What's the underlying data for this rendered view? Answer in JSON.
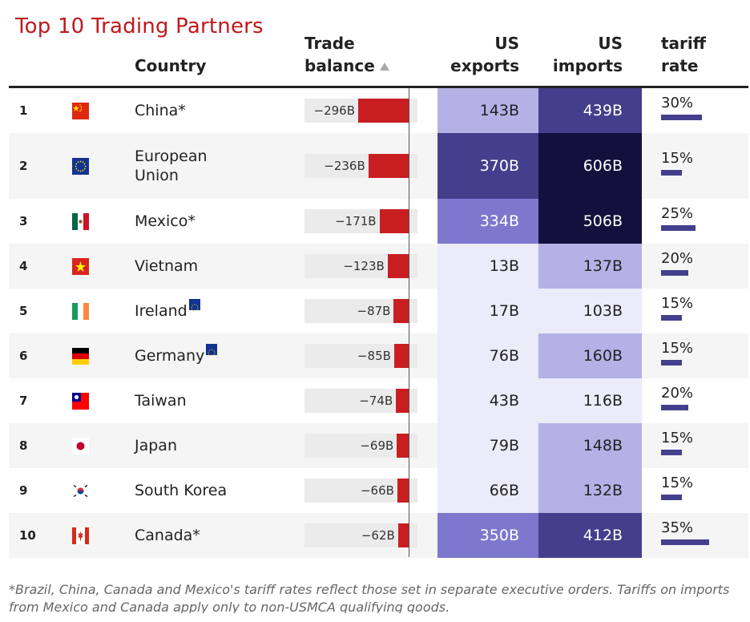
{
  "title": "Top 10 Trading Partners",
  "headers": {
    "country": "Country",
    "trade_balance_1": "Trade",
    "trade_balance_2": "balance",
    "exports_1": "US",
    "exports_2": "exports",
    "imports_1": "US",
    "imports_2": "imports",
    "tariff_1": "tariff",
    "tariff_2": "rate"
  },
  "colors": {
    "title": "#c0181e",
    "balance_bar": "#c81e22",
    "tariff_bar": "#443f8c",
    "heat_scale": [
      "#ecebfa",
      "#b4b1e6",
      "#7d78ce",
      "#443f8c",
      "#12113e"
    ]
  },
  "footnote": "*Brazil, China, Canada and Mexico's tariff rates reflect those set in separate executive orders. Tariffs on imports from Mexico and Canada apply only to non-USMCA qualifying goods.",
  "chart_data": {
    "type": "table",
    "columns": [
      "rank",
      "flag",
      "Country",
      "Trade balance",
      "US exports",
      "US imports",
      "tariff rate"
    ],
    "sort": "Trade balance ascending",
    "rows": [
      {
        "rank": "1",
        "flag": "china-flag-icon",
        "country": "China*",
        "balance": -296,
        "balance_label": "−296B",
        "exports": 143,
        "exports_label": "143B",
        "imports": 439,
        "imports_label": "439B",
        "tariff": 30,
        "tariff_label": "30%"
      },
      {
        "rank": "2",
        "flag": "eu-flag-icon",
        "country": "European Union",
        "balance": -236,
        "balance_label": "−236B",
        "exports": 370,
        "exports_label": "370B",
        "imports": 606,
        "imports_label": "606B",
        "tariff": 15,
        "tariff_label": "15%"
      },
      {
        "rank": "3",
        "flag": "mexico-flag-icon",
        "country": "Mexico*",
        "balance": -171,
        "balance_label": "−171B",
        "exports": 334,
        "exports_label": "334B",
        "imports": 506,
        "imports_label": "506B",
        "tariff": 25,
        "tariff_label": "25%"
      },
      {
        "rank": "4",
        "flag": "vietnam-flag-icon",
        "country": "Vietnam",
        "balance": -123,
        "balance_label": "−123B",
        "exports": 13,
        "exports_label": "13B",
        "imports": 137,
        "imports_label": "137B",
        "tariff": 20,
        "tariff_label": "20%"
      },
      {
        "rank": "5",
        "flag": "ireland-flag-icon",
        "country": "Ireland",
        "eu_member": true,
        "balance": -87,
        "balance_label": "−87B",
        "exports": 17,
        "exports_label": "17B",
        "imports": 103,
        "imports_label": "103B",
        "tariff": 15,
        "tariff_label": "15%"
      },
      {
        "rank": "6",
        "flag": "germany-flag-icon",
        "country": "Germany",
        "eu_member": true,
        "balance": -85,
        "balance_label": "−85B",
        "exports": 76,
        "exports_label": "76B",
        "imports": 160,
        "imports_label": "160B",
        "tariff": 15,
        "tariff_label": "15%"
      },
      {
        "rank": "7",
        "flag": "taiwan-flag-icon",
        "country": "Taiwan",
        "balance": -74,
        "balance_label": "−74B",
        "exports": 43,
        "exports_label": "43B",
        "imports": 116,
        "imports_label": "116B",
        "tariff": 20,
        "tariff_label": "20%"
      },
      {
        "rank": "8",
        "flag": "japan-flag-icon",
        "country": "Japan",
        "balance": -69,
        "balance_label": "−69B",
        "exports": 79,
        "exports_label": "79B",
        "imports": 148,
        "imports_label": "148B",
        "tariff": 15,
        "tariff_label": "15%"
      },
      {
        "rank": "9",
        "flag": "south-korea-flag-icon",
        "country": "South Korea",
        "balance": -66,
        "balance_label": "−66B",
        "exports": 66,
        "exports_label": "66B",
        "imports": 132,
        "imports_label": "132B",
        "tariff": 15,
        "tariff_label": "15%"
      },
      {
        "rank": "10",
        "flag": "canada-flag-icon",
        "country": "Canada*",
        "balance": -62,
        "balance_label": "−62B",
        "exports": 350,
        "exports_label": "350B",
        "imports": 412,
        "imports_label": "412B",
        "tariff": 35,
        "tariff_label": "35%"
      }
    ]
  }
}
